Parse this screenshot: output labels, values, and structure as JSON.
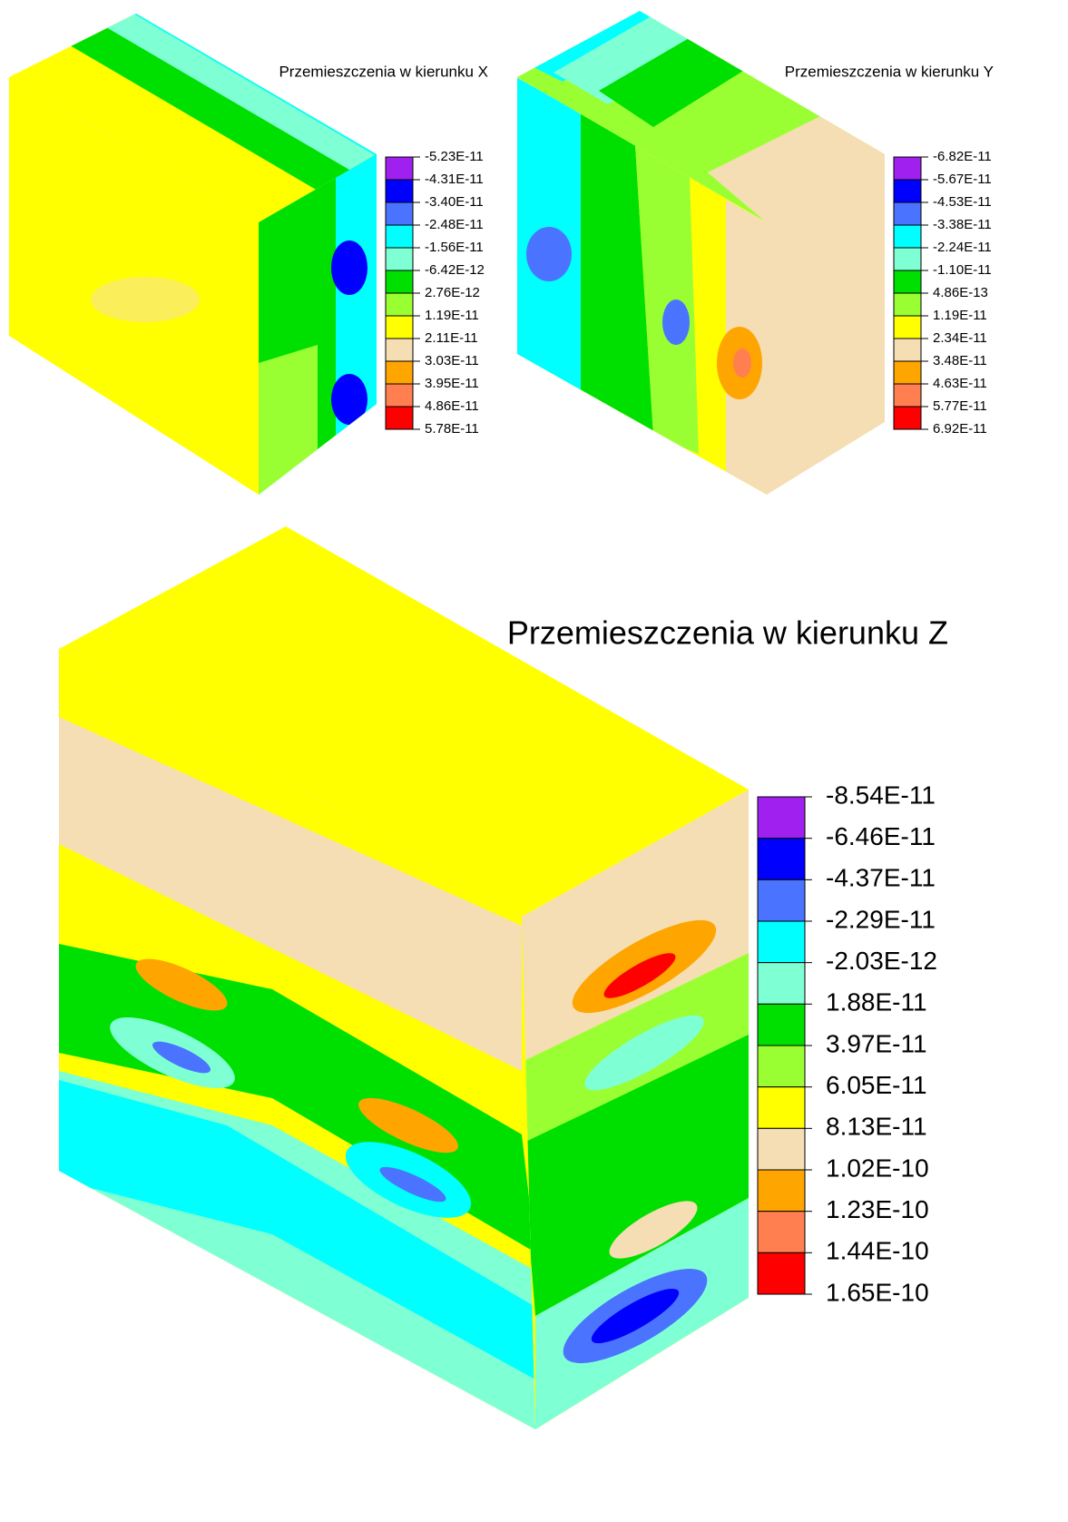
{
  "panels": [
    {
      "title": "Przemieszczenia w kierunku X",
      "legend": {
        "labels": [
          "-5.23E-11",
          "-4.31E-11",
          "-3.40E-11",
          "-2.48E-11",
          "-1.56E-11",
          "-6.42E-12",
          "2.76E-12",
          "1.19E-11",
          "2.11E-11",
          "3.03E-11",
          "3.95E-11",
          "4.86E-11",
          "5.78E-11"
        ],
        "colors": [
          "#a020f0",
          "#0000ff",
          "#4a74ff",
          "#00ffff",
          "#7fffd4",
          "#00e000",
          "#9aff32",
          "#ffff00",
          "#f5deb3",
          "#ffa500",
          "#ff7f50",
          "#ff0000"
        ]
      }
    },
    {
      "title": "Przemieszczenia w kierunku Y",
      "legend": {
        "labels": [
          "-6.82E-11",
          "-5.67E-11",
          "-4.53E-11",
          "-3.38E-11",
          "-2.24E-11",
          "-1.10E-11",
          "4.86E-13",
          "1.19E-11",
          "2.34E-11",
          "3.48E-11",
          "4.63E-11",
          "5.77E-11",
          "6.92E-11"
        ],
        "colors": [
          "#a020f0",
          "#0000ff",
          "#4a74ff",
          "#00ffff",
          "#7fffd4",
          "#00e000",
          "#9aff32",
          "#ffff00",
          "#f5deb3",
          "#ffa500",
          "#ff7f50",
          "#ff0000"
        ]
      }
    },
    {
      "title": "Przemieszczenia w kierunku Z",
      "legend": {
        "labels": [
          "-8.54E-11",
          "-6.46E-11",
          "-4.37E-11",
          "-2.29E-11",
          "-2.03E-12",
          "1.88E-11",
          "3.97E-11",
          "6.05E-11",
          "8.13E-11",
          "1.02E-10",
          "1.23E-10",
          "1.44E-10",
          "1.65E-10"
        ],
        "colors": [
          "#a020f0",
          "#0000ff",
          "#4a74ff",
          "#00ffff",
          "#7fffd4",
          "#00e000",
          "#9aff32",
          "#ffff00",
          "#f5deb3",
          "#ffa500",
          "#ff7f50",
          "#ff0000"
        ]
      }
    }
  ]
}
